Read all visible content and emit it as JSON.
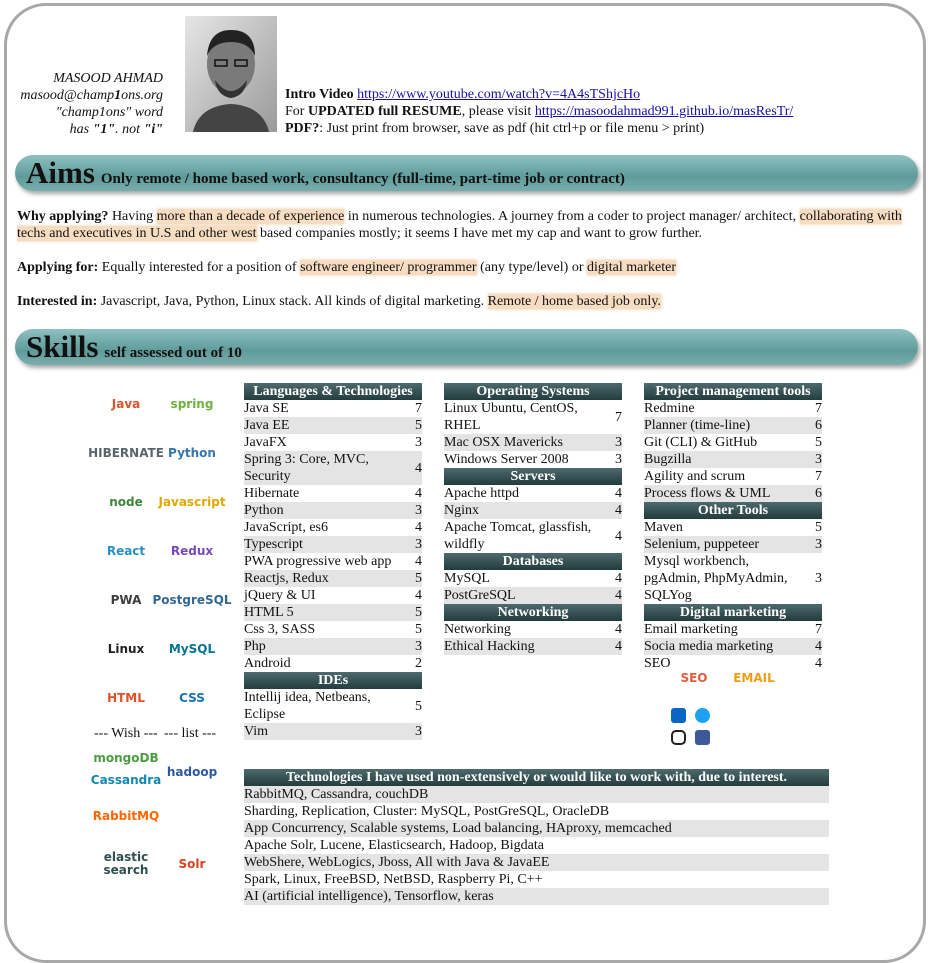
{
  "header": {
    "name": "MASOOD AHMAD",
    "email": [
      "masood@champ",
      "1",
      "ons.org"
    ],
    "note1": "\"champ1ons\" word",
    "note2": [
      "has ",
      "\"1\"",
      ". not ",
      "\"i\""
    ],
    "intro": {
      "video_label": "Intro Video",
      "video_url": "https://www.youtube.com/watch?v=4A4sTShjcHo",
      "resume_for": "For ",
      "resume_bold": "UPDATED full RESUME",
      "resume_visit": ", please visit ",
      "resume_url": "https://masoodahmad991.github.io/masResTr/",
      "pdf_label": "PDF?",
      "pdf_text": ": Just print from browser, save as pdf (hit ctrl+p or file menu > print)"
    }
  },
  "aims": {
    "title": "Aims",
    "subtitle": "Only remote / home based work, consultancy (full-time, part-time job or contract)",
    "paragraphs": [
      {
        "label": "Why applying?",
        "parts": [
          " Having ",
          "more than a decade of experience",
          " in numerous technologies. A journey from a coder to project manager/ architect, ",
          "collaborating with techs and executives in U.S and other west",
          " based companies mostly; it seems I have met my cap and want to grow further."
        ]
      },
      {
        "label": "Applying for:",
        "parts": [
          " Equally interested for a position of ",
          "software engineer/ programmer",
          " (any type/level) or ",
          "digital marketer"
        ]
      },
      {
        "label": "Interested in:",
        "parts": [
          " Javascript, Java, Python, Linux stack. All kinds of digital marketing. ",
          "Remote / home based job only."
        ]
      }
    ]
  },
  "skills": {
    "title": "Skills",
    "subtitle": "self assessed out of 10",
    "logos": [
      {
        "label": "Java",
        "color": "#d9532c"
      },
      {
        "label": "spring",
        "color": "#6db33f"
      },
      {
        "label": "HIBERNATE",
        "color": "#59666c"
      },
      {
        "label": "Python",
        "color": "#3776ab"
      },
      {
        "label": "node",
        "color": "#3c873a"
      },
      {
        "label": "Javascript",
        "color": "#e0a800"
      },
      {
        "label": "React",
        "color": "#2a8fc9"
      },
      {
        "label": "Redux",
        "color": "#764abc"
      },
      {
        "label": "PWA",
        "color": "#3d3d3d"
      },
      {
        "label": "PostgreSQL",
        "color": "#336791"
      },
      {
        "label": "Linux",
        "color": "#222222"
      },
      {
        "label": "MySQL",
        "color": "#00758f"
      },
      {
        "label": "HTML",
        "color": "#e34f26"
      },
      {
        "label": "CSS",
        "color": "#1572b6"
      }
    ],
    "wish": [
      "--- Wish ---",
      "--- list ---"
    ],
    "wish_logos": [
      {
        "label": "mongoDB",
        "color": "#4a9d3f"
      },
      {
        "label": "Cassandra",
        "color": "#1287b1"
      },
      {
        "label": "hadoop",
        "color": "#2c5aa0"
      },
      {
        "label": "RabbitMQ",
        "color": "#ff6600"
      },
      {
        "label": "elastic search",
        "color": "#2f4f4f"
      },
      {
        "label": "Solr",
        "color": "#d9411e"
      }
    ],
    "marketing_logos": [
      {
        "label": "SEO",
        "color": "#e55b3c"
      },
      {
        "label": "EMAIL",
        "color": "#f39c12"
      }
    ],
    "columns": [
      [
        {
          "title": "Languages & Technologies",
          "rows": [
            [
              "Java SE",
              7
            ],
            [
              "Java EE",
              5
            ],
            [
              "JavaFX",
              3
            ],
            [
              "Spring 3: Core, MVC, Security",
              4
            ],
            [
              "Hibernate",
              4
            ],
            [
              "Python",
              3
            ],
            [
              "JavaScript, es6",
              4
            ],
            [
              "Typescript",
              3
            ],
            [
              "PWA progressive web app",
              4
            ],
            [
              "Reactjs, Redux",
              5
            ],
            [
              "jQuery & UI",
              4
            ],
            [
              "HTML 5",
              5
            ],
            [
              "Css 3, SASS",
              5
            ],
            [
              "Php",
              3
            ],
            [
              "Android",
              2
            ]
          ]
        },
        {
          "title": "IDEs",
          "rows": [
            [
              "Intellij idea, Netbeans, Eclipse",
              5
            ],
            [
              "Vim",
              3
            ]
          ]
        }
      ],
      [
        {
          "title": "Operating Systems",
          "rows": [
            [
              "Linux Ubuntu, CentOS, RHEL",
              7
            ],
            [
              "Mac OSX Mavericks",
              3
            ],
            [
              "Windows Server 2008",
              3
            ]
          ]
        },
        {
          "title": "Servers",
          "rows": [
            [
              "Apache httpd",
              4
            ],
            [
              "Nginx",
              4
            ],
            [
              "Apache Tomcat, glassfish, wildfly",
              4
            ]
          ]
        },
        {
          "title": "Databases",
          "rows": [
            [
              "MySQL",
              4
            ],
            [
              "PostGreSQL",
              4
            ]
          ]
        },
        {
          "title": "Networking",
          "rows": [
            [
              "Networking",
              4
            ],
            [
              "Ethical Hacking",
              4
            ]
          ]
        }
      ],
      [
        {
          "title": "Project management tools",
          "rows": [
            [
              "Redmine",
              7
            ],
            [
              "Planner (time-line)",
              6
            ],
            [
              "Git (CLI) & GitHub",
              5
            ],
            [
              "Bugzilla",
              3
            ],
            [
              "Agility and scrum",
              7
            ],
            [
              "Process flows & UML",
              6
            ]
          ]
        },
        {
          "title": "Other Tools",
          "rows": [
            [
              "Maven",
              5
            ],
            [
              "Selenium, puppeteer",
              3
            ],
            [
              "Mysql workbench, pgAdmin, PhpMyAdmin, SQLYog",
              3
            ]
          ]
        },
        {
          "title": "Digital marketing",
          "rows": [
            [
              "Email marketing",
              7
            ],
            [
              "Socia media marketing",
              4
            ],
            [
              "SEO",
              4
            ]
          ]
        }
      ]
    ],
    "other": {
      "title": "Technologies I have used non-extensively or would like to work with, due to interest.",
      "rows": [
        "RabbitMQ, Cassandra, couchDB",
        "Sharding, Replication, Cluster: MySQL, PostGreSQL, OracleDB",
        "App Concurrency, Scalable systems, Load balancing, HAproxy, memcached",
        "Apache Solr, Lucene, Elasticsearch, Hadoop, Bigdata",
        "WebShere, WebLogics, Jboss, All with Java & JavaEE",
        "Spark, Linux, FreeBSD, NetBSD, Raspberry Pi, C++",
        "AI (artificial intelligence), Tensorflow, keras"
      ]
    }
  }
}
